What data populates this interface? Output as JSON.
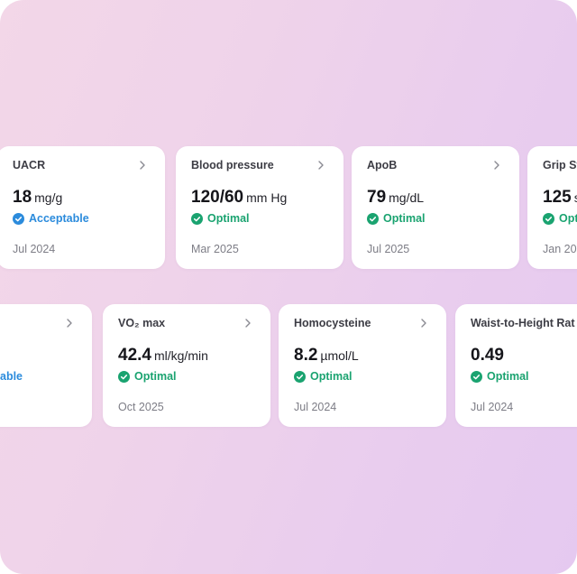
{
  "colors": {
    "optimal": "#1aa370",
    "acceptable": "#2b8bdc",
    "background": "#ecd0ec"
  },
  "row1": [
    {
      "title": "UACR",
      "value": "18",
      "unit": "mg/g",
      "status": "Acceptable",
      "status_type": "acceptable",
      "date": "Jul 2024"
    },
    {
      "title": "Blood pressure",
      "value": "120/60",
      "unit": "mm Hg",
      "status": "Optimal",
      "status_type": "optimal",
      "date": "Mar 2025"
    },
    {
      "title": "ApoB",
      "value": "79",
      "unit": "mg/dL",
      "status": "Optimal",
      "status_type": "optimal",
      "date": "Jul 2025"
    },
    {
      "title": "Grip St",
      "value": "125",
      "unit": "s",
      "status": "Opt",
      "status_type": "optimal",
      "date": "Jan 20"
    }
  ],
  "row2": [
    {
      "title": "",
      "value": "",
      "unit": "",
      "status": "able",
      "status_type": "acceptable",
      "date": ""
    },
    {
      "title": "VO₂ max",
      "value": "42.4",
      "unit": "ml/kg/min",
      "status": "Optimal",
      "status_type": "optimal",
      "date": "Oct 2025"
    },
    {
      "title": "Homocysteine",
      "value": "8.2",
      "unit": "µmol/L",
      "status": "Optimal",
      "status_type": "optimal",
      "date": "Jul 2024"
    },
    {
      "title": "Waist-to-Height Rat",
      "value": "0.49",
      "unit": "",
      "status": "Optimal",
      "status_type": "optimal",
      "date": "Jul 2024"
    }
  ]
}
